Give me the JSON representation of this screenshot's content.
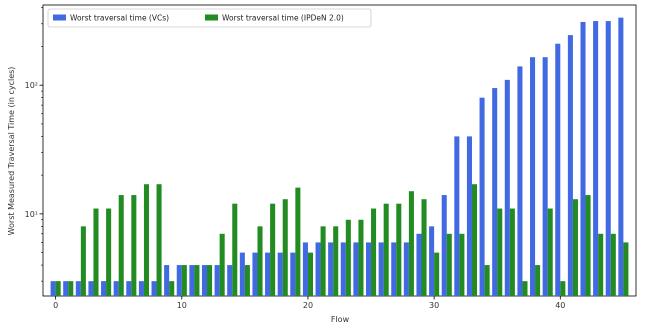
{
  "chart_data": {
    "type": "bar",
    "xlabel": "Flow",
    "ylabel": "Worst Measured Traversal Time (in cycles)",
    "yscale": "log",
    "ylim": [
      2.3,
      420
    ],
    "xlim": [
      -1,
      46
    ],
    "x_ticks": [
      0,
      10,
      20,
      30,
      40
    ],
    "y_ticks": [
      {
        "value": 10,
        "label": "10¹"
      },
      {
        "value": 100,
        "label": "10²"
      }
    ],
    "legend_position": "top-left",
    "grid": false,
    "x": [
      0,
      1,
      2,
      3,
      4,
      5,
      6,
      7,
      8,
      9,
      10,
      11,
      12,
      13,
      14,
      15,
      16,
      17,
      18,
      19,
      20,
      21,
      22,
      23,
      24,
      25,
      26,
      27,
      28,
      29,
      30,
      31,
      32,
      33,
      34,
      35,
      36,
      37,
      38,
      39,
      40,
      41,
      42,
      43,
      44,
      45
    ],
    "series": [
      {
        "name": "Worst traversal time (VCs)",
        "color": "#4169e1",
        "values": [
          3,
          3,
          3,
          3,
          3,
          3,
          3,
          3,
          3,
          4,
          4,
          4,
          4,
          4,
          4,
          5,
          5,
          5,
          5,
          5,
          6,
          6,
          6,
          6,
          6,
          6,
          6,
          6,
          6,
          7,
          8,
          14,
          40,
          40,
          80,
          95,
          110,
          140,
          165,
          165,
          210,
          245,
          310,
          315,
          315,
          335
        ]
      },
      {
        "name": "Worst traversal time (IPDeN 2.0)",
        "color": "#228b22",
        "values": [
          3,
          3,
          8,
          11,
          11,
          14,
          14,
          17,
          17,
          3,
          4,
          4,
          4,
          7,
          12,
          4,
          8,
          12,
          13,
          16,
          5,
          8,
          8,
          9,
          9,
          11,
          12,
          12,
          15,
          13,
          5,
          7,
          7,
          17,
          4,
          11,
          11,
          3,
          4,
          11,
          3,
          13,
          14,
          7,
          7,
          6
        ]
      }
    ]
  }
}
